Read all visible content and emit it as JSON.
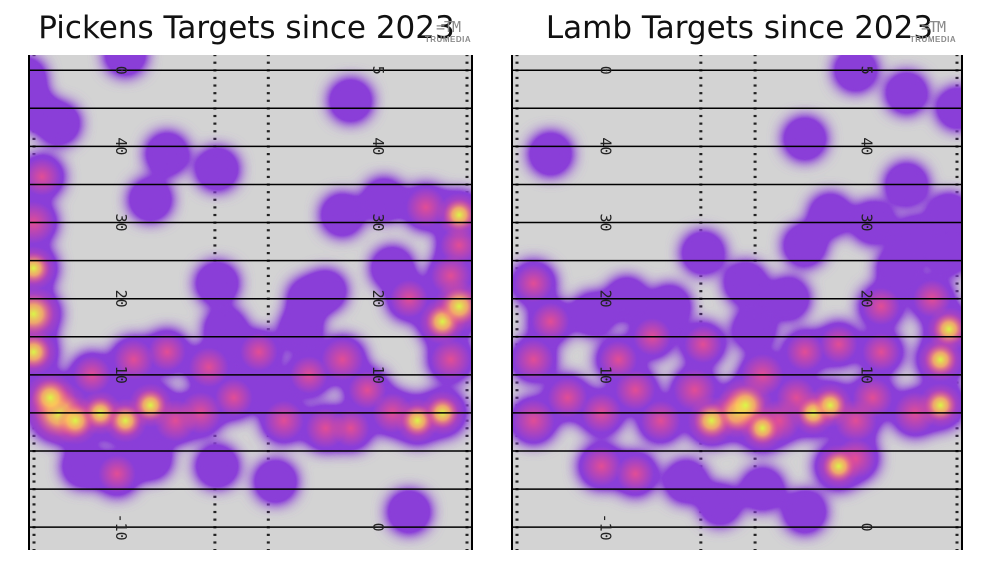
{
  "brand": {
    "mark": "=TM",
    "name": "TRUMEDIA"
  },
  "colors": {
    "field": "#d3d3d3",
    "line": "#000000",
    "hash": "#222222",
    "heat_low": "#8a3ed8",
    "heat_mid": "#f0508a",
    "heat_high": "#ffcc55",
    "heat_peak": "#d8ff44"
  },
  "chart_data": [
    {
      "type": "heatmap",
      "title": "Pickens Targets since 2023",
      "xlabel": "",
      "ylabel": "",
      "ylim": [
        -13,
        52
      ],
      "yard_lines": [
        -10,
        -5,
        0,
        5,
        10,
        15,
        20,
        25,
        30,
        35,
        40,
        45,
        50
      ],
      "number_labels": {
        "left": [
          "-10",
          "10",
          "20",
          "30",
          "40",
          "0"
        ],
        "left_yards": [
          -10,
          10,
          20,
          30,
          40,
          50
        ],
        "right": [
          "0",
          "10",
          "20",
          "30",
          "40",
          "5"
        ],
        "right_yards": [
          -10,
          10,
          20,
          30,
          40,
          50
        ]
      },
      "points": [
        [
          -23,
          5,
          1.0
        ],
        [
          -24,
          7,
          0.7
        ],
        [
          -21,
          4,
          0.65
        ],
        [
          -26,
          18,
          0.8
        ],
        [
          -26,
          13,
          0.6
        ],
        [
          -26,
          24,
          0.55
        ],
        [
          -26,
          30,
          0.5
        ],
        [
          -25,
          36,
          0.4
        ],
        [
          -23,
          43,
          0.35
        ],
        [
          -26,
          45,
          0.3
        ],
        [
          -18,
          5,
          0.55
        ],
        [
          -15,
          4,
          0.55
        ],
        [
          -12,
          6,
          0.55
        ],
        [
          -9,
          4,
          0.5
        ],
        [
          -6,
          5,
          0.5
        ],
        [
          -19,
          10,
          0.4
        ],
        [
          -14,
          12,
          0.45
        ],
        [
          -10,
          13,
          0.4
        ],
        [
          -5,
          11,
          0.45
        ],
        [
          -15,
          8,
          0.35
        ],
        [
          -20,
          -2,
          0.35
        ],
        [
          -16,
          -3,
          0.4
        ],
        [
          -12,
          -1,
          0.35
        ],
        [
          -3,
          16,
          0.35
        ],
        [
          1,
          13,
          0.4
        ],
        [
          -2,
          7,
          0.4
        ],
        [
          2,
          8,
          0.35
        ],
        [
          4,
          4,
          0.45
        ],
        [
          6,
          16,
          0.35
        ],
        [
          7,
          10,
          0.4
        ],
        [
          9,
          3,
          0.45
        ],
        [
          11,
          12,
          0.5
        ],
        [
          12,
          3,
          0.4
        ],
        [
          14,
          8,
          0.4
        ],
        [
          17,
          5,
          0.45
        ],
        [
          20,
          4,
          0.55
        ],
        [
          23,
          5,
          0.55
        ],
        [
          23,
          17,
          0.6
        ],
        [
          25,
          19,
          0.7
        ],
        [
          24,
          12,
          0.45
        ],
        [
          24,
          23,
          0.45
        ],
        [
          25,
          27,
          0.4
        ],
        [
          25,
          31,
          0.55
        ],
        [
          21,
          32,
          0.45
        ],
        [
          17,
          24,
          0.35
        ],
        [
          19,
          20,
          0.4
        ],
        [
          16,
          33,
          0.35
        ],
        [
          11,
          31,
          0.35
        ],
        [
          12,
          46,
          0.35
        ],
        [
          7,
          20,
          0.35
        ],
        [
          3,
          -4,
          0.35
        ],
        [
          -4,
          -2,
          0.35
        ],
        [
          -4,
          37,
          0.35
        ],
        [
          -10,
          39,
          0.35
        ],
        [
          -12,
          33,
          0.35
        ],
        [
          -4,
          22,
          0.35
        ],
        [
          -15,
          52,
          0.3
        ],
        [
          -27,
          49,
          0.3
        ],
        [
          19,
          -8,
          0.35
        ],
        [
          9,
          21,
          0.3
        ]
      ]
    },
    {
      "type": "heatmap",
      "title": "Lamb Targets since 2023",
      "xlabel": "",
      "ylabel": "",
      "ylim": [
        -13,
        52
      ],
      "yard_lines": [
        -10,
        -5,
        0,
        5,
        10,
        15,
        20,
        25,
        30,
        35,
        40,
        45,
        50
      ],
      "number_labels": {
        "left": [
          "-10",
          "10",
          "20",
          "30",
          "40",
          "0"
        ],
        "left_yards": [
          -10,
          10,
          20,
          30,
          40,
          50
        ],
        "right": [
          "0",
          "10",
          "20",
          "30",
          "40",
          "5"
        ],
        "right_yards": [
          -10,
          10,
          20,
          30,
          40,
          50
        ]
      },
      "points": [
        [
          -24,
          4,
          0.5
        ],
        [
          -20,
          7,
          0.45
        ],
        [
          -24,
          12,
          0.45
        ],
        [
          -22,
          17,
          0.4
        ],
        [
          -24,
          22,
          0.4
        ],
        [
          -22,
          39,
          0.35
        ],
        [
          -16,
          5,
          0.45
        ],
        [
          -12,
          8,
          0.45
        ],
        [
          -9,
          4,
          0.45
        ],
        [
          -14,
          12,
          0.4
        ],
        [
          -10,
          15,
          0.4
        ],
        [
          -17,
          18,
          0.35
        ],
        [
          -13,
          20,
          0.35
        ],
        [
          -8,
          19,
          0.35
        ],
        [
          -16,
          -2,
          0.45
        ],
        [
          -12,
          -3,
          0.4
        ],
        [
          -6,
          -4,
          0.35
        ],
        [
          -5,
          8,
          0.5
        ],
        [
          -3,
          4,
          0.65
        ],
        [
          -4,
          14,
          0.4
        ],
        [
          -4,
          26,
          0.35
        ],
        [
          0,
          5,
          0.7
        ],
        [
          1,
          6,
          0.8
        ],
        [
          3,
          3,
          0.55
        ],
        [
          3,
          10,
          0.5
        ],
        [
          2,
          16,
          0.35
        ],
        [
          1,
          22,
          0.35
        ],
        [
          5,
          4,
          0.5
        ],
        [
          7,
          7,
          0.45
        ],
        [
          9,
          5,
          0.55
        ],
        [
          11,
          6,
          0.55
        ],
        [
          8,
          13,
          0.4
        ],
        [
          6,
          20,
          0.35
        ],
        [
          8,
          27,
          0.35
        ],
        [
          11,
          31,
          0.35
        ],
        [
          12,
          14,
          0.4
        ],
        [
          14,
          4,
          0.5
        ],
        [
          12,
          -2,
          0.55
        ],
        [
          14,
          -1,
          0.45
        ],
        [
          16,
          7,
          0.45
        ],
        [
          17,
          13,
          0.4
        ],
        [
          17,
          19,
          0.4
        ],
        [
          19,
          24,
          0.35
        ],
        [
          21,
          28,
          0.35
        ],
        [
          16,
          30,
          0.35
        ],
        [
          21,
          5,
          0.5
        ],
        [
          24,
          6,
          0.55
        ],
        [
          24,
          12,
          0.55
        ],
        [
          25,
          16,
          0.55
        ],
        [
          23,
          20,
          0.4
        ],
        [
          25,
          26,
          0.35
        ],
        [
          25,
          31,
          0.35
        ],
        [
          20,
          35,
          0.35
        ],
        [
          14,
          50,
          0.35
        ],
        [
          20,
          47,
          0.3
        ],
        [
          26,
          45,
          0.3
        ],
        [
          8,
          41,
          0.35
        ],
        [
          3,
          -5,
          0.35
        ],
        [
          -2,
          -7,
          0.3
        ],
        [
          8,
          -8,
          0.35
        ]
      ]
    }
  ]
}
